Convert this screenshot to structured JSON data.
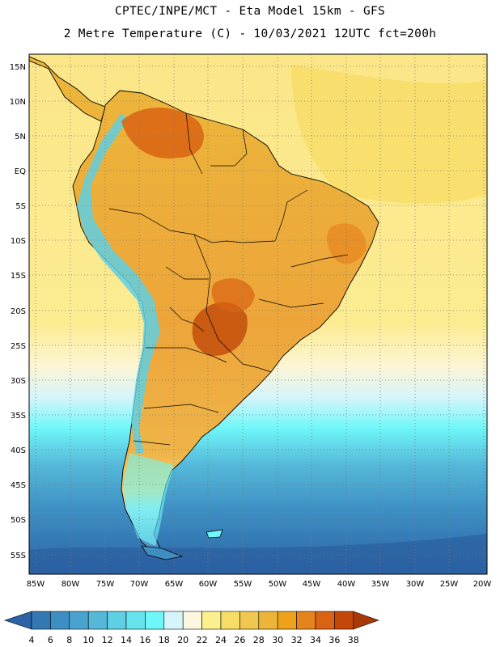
{
  "header": {
    "line1": "CPTEC/INPE/MCT -  Eta Model 15km - GFS",
    "line2": "2 Metre Temperature (C) - 10/03/2021 12UTC fct=200h"
  },
  "map": {
    "lat_labels": [
      "15N",
      "10N",
      "5N",
      "EQ",
      "5S",
      "10S",
      "15S",
      "20S",
      "25S",
      "30S",
      "35S",
      "40S",
      "45S",
      "50S",
      "55S"
    ],
    "lon_labels": [
      "85W",
      "80W",
      "75W",
      "70W",
      "65W",
      "60W",
      "55W",
      "50W",
      "45W",
      "40W",
      "35W",
      "30W",
      "25W",
      "20W"
    ]
  },
  "colorbar": {
    "labels": [
      "4",
      "6",
      "8",
      "10",
      "12",
      "14",
      "16",
      "18",
      "20",
      "22",
      "24",
      "26",
      "28",
      "30",
      "32",
      "34",
      "36",
      "38"
    ],
    "colors": [
      "#2b63a6",
      "#3378b5",
      "#3d8ec2",
      "#4aa3cf",
      "#55b8d9",
      "#5fcfe3",
      "#66e4ee",
      "#6ef6f8",
      "#d5f5fb",
      "#fdf7e0",
      "#fbf08e",
      "#f7dc66",
      "#f1c84f",
      "#ecb53a",
      "#eea11b",
      "#e5831e",
      "#d96313",
      "#c24708",
      "#a83a0a"
    ]
  }
}
